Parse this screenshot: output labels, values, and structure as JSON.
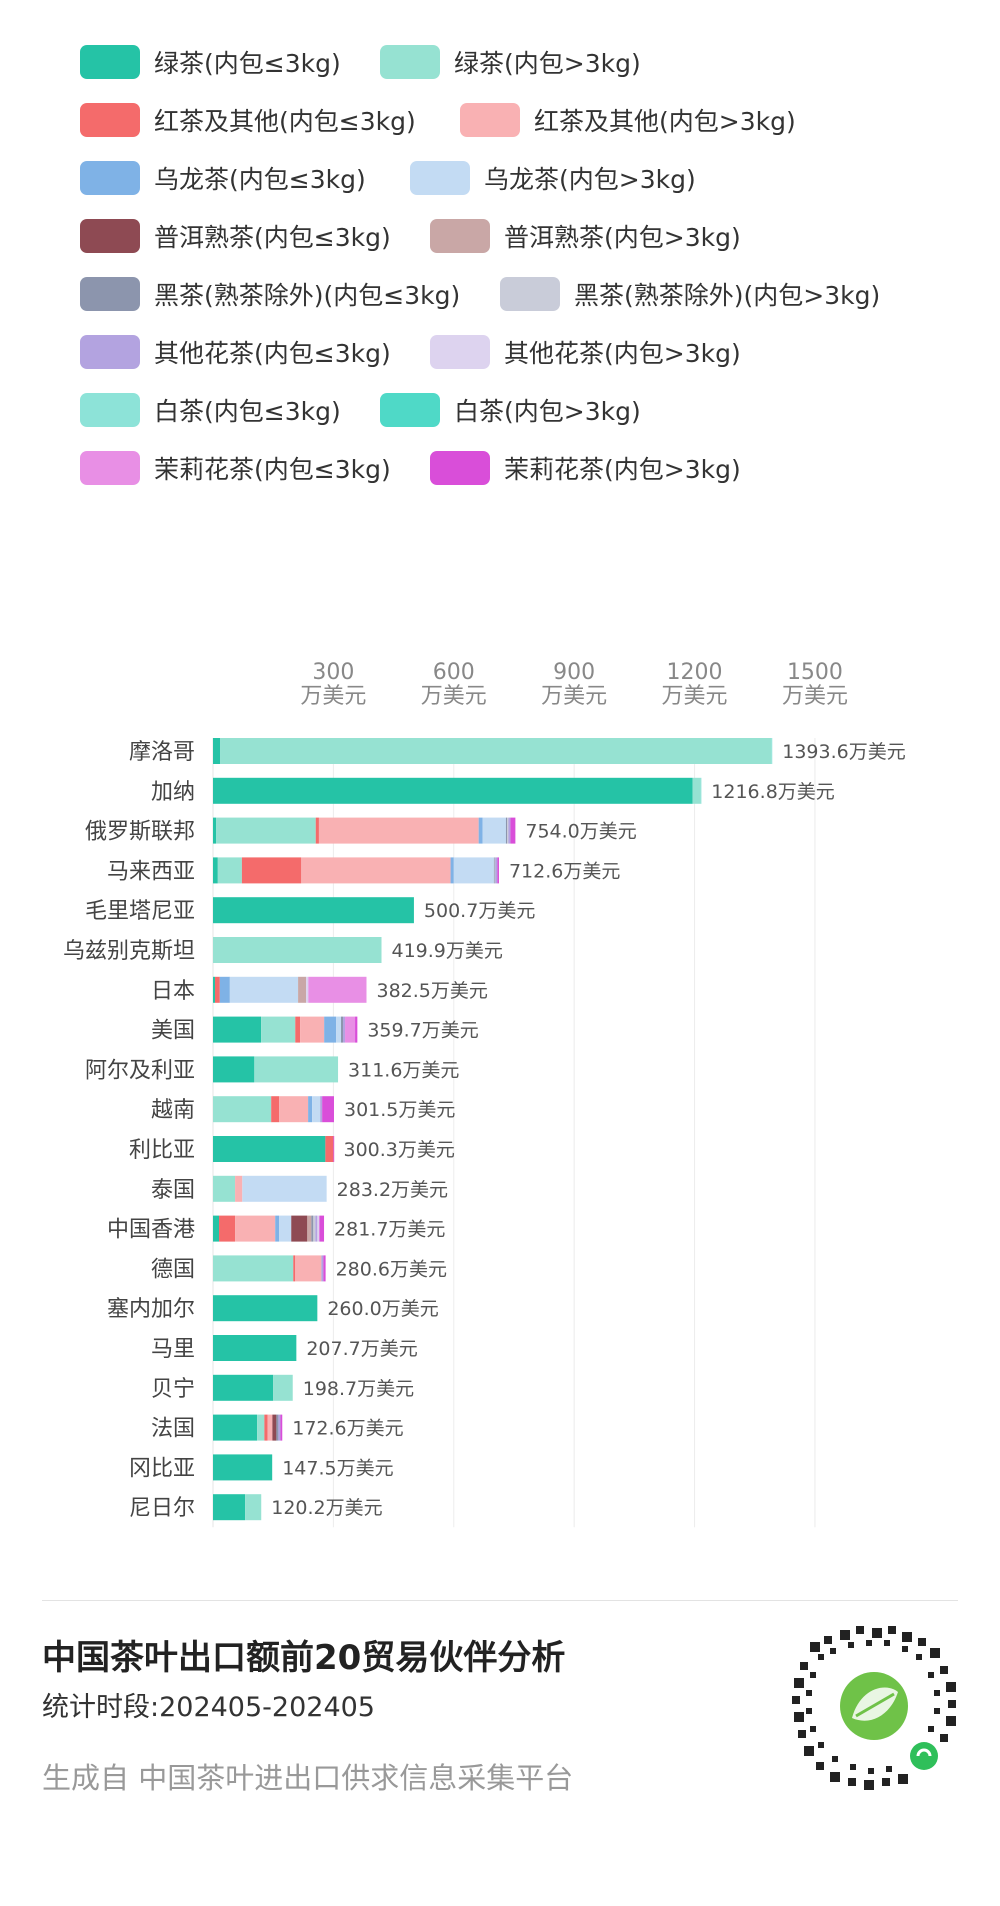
{
  "legend": [
    {
      "label": "绿茶(内包≤3kg)",
      "color": "#25c3a6"
    },
    {
      "label": "绿茶(内包>3kg)",
      "color": "#96e2d2"
    },
    {
      "label": "红茶及其他(内包≤3kg)",
      "color": "#f46b6b"
    },
    {
      "label": "红茶及其他(内包>3kg)",
      "color": "#f9b1b3"
    },
    {
      "label": "乌龙茶(内包≤3kg)",
      "color": "#7fb2e6"
    },
    {
      "label": "乌龙茶(内包>3kg)",
      "color": "#c3dbf3"
    },
    {
      "label": "普洱熟茶(内包≤3kg)",
      "color": "#8e4a53"
    },
    {
      "label": "普洱熟茶(内包>3kg)",
      "color": "#c9a7a6"
    },
    {
      "label": "黑茶(熟茶除外)(内包≤3kg)",
      "color": "#8c95ad"
    },
    {
      "label": "黑茶(熟茶除外)(内包>3kg)",
      "color": "#c9ccd9"
    },
    {
      "label": "其他花茶(内包≤3kg)",
      "color": "#b3a3e0"
    },
    {
      "label": "其他花茶(内包>3kg)",
      "color": "#ddd3ef"
    },
    {
      "label": "白茶(内包≤3kg)",
      "color": "#8de3d8"
    },
    {
      "label": "白茶(内包>3kg)",
      "color": "#4fd9c7"
    },
    {
      "label": "茉莉花茶(内包≤3kg)",
      "color": "#e88fe5"
    },
    {
      "label": "茉莉花茶(内包>3kg)",
      "color": "#d94ed9"
    }
  ],
  "chart_data": {
    "type": "bar",
    "orientation": "horizontal",
    "stacked": true,
    "xlim": [
      0,
      1500
    ],
    "x_ticks": [
      "300",
      "600",
      "900",
      "1200",
      "1500"
    ],
    "x_tick_unit": "万美元",
    "grid": true,
    "legend_position": "top",
    "categories": [
      "摩洛哥",
      "加纳",
      "俄罗斯联邦",
      "马来西亚",
      "毛里塔尼亚",
      "乌兹别克斯坦",
      "日本",
      "美国",
      "阿尔及利亚",
      "越南",
      "利比亚",
      "泰国",
      "中国香港",
      "德国",
      "塞内加尔",
      "马里",
      "贝宁",
      "法国",
      "冈比亚",
      "尼日尔"
    ],
    "total_labels": [
      "1393.6万美元",
      "1216.8万美元",
      "754.0万美元",
      "712.6万美元",
      "500.7万美元",
      "419.9万美元",
      "382.5万美元",
      "359.7万美元",
      "311.6万美元",
      "301.5万美元",
      "300.3万美元",
      "283.2万美元",
      "281.7万美元",
      "280.6万美元",
      "260.0万美元",
      "207.7万美元",
      "198.7万美元",
      "172.6万美元",
      "147.5万美元",
      "120.2万美元"
    ],
    "series": [
      {
        "name": "绿茶(内包≤3kg)",
        "values": [
          18,
          1195,
          8,
          12,
          500.7,
          0,
          5,
          120,
          103,
          0,
          280,
          0,
          15,
          0,
          260,
          207.7,
          150,
          110,
          147.5,
          80
        ]
      },
      {
        "name": "绿茶(内包>3kg)",
        "values": [
          1373,
          20,
          248,
          60,
          0,
          419.9,
          0,
          85,
          208.6,
          145,
          0,
          55,
          0,
          200,
          0,
          0,
          48.7,
          18,
          0,
          40.2
        ]
      },
      {
        "name": "红茶及其他(内包≤3kg)",
        "values": [
          0,
          0,
          8,
          148,
          0,
          0,
          12,
          12,
          0,
          20,
          20,
          0,
          40,
          5,
          0,
          0,
          0,
          8,
          0,
          0
        ]
      },
      {
        "name": "红茶及其他(内包>3kg)",
        "values": [
          0,
          0,
          398,
          372,
          0,
          0,
          0,
          60,
          0,
          72,
          0,
          18,
          100,
          65,
          0,
          0,
          0,
          12,
          0,
          0
        ]
      },
      {
        "name": "乌龙茶(内包≤3kg)",
        "values": [
          0,
          0,
          10,
          8,
          0,
          0,
          25,
          30,
          0,
          10,
          0,
          0,
          10,
          0,
          0,
          0,
          0,
          0,
          0,
          0
        ]
      },
      {
        "name": "乌龙茶(内包>3kg)",
        "values": [
          0,
          0,
          58,
          100,
          0,
          0,
          170,
          12,
          0,
          20,
          0,
          210.2,
          30,
          0,
          0,
          0,
          0,
          0,
          0,
          0
        ]
      },
      {
        "name": "普洱熟茶(内包≤3kg)",
        "values": [
          0,
          0,
          0,
          0,
          0,
          0,
          0,
          0,
          0,
          0,
          0,
          0,
          40,
          0,
          0,
          0,
          0,
          10,
          0,
          0
        ]
      },
      {
        "name": "普洱熟茶(内包>3kg)",
        "values": [
          0,
          0,
          0,
          0,
          0,
          0,
          20,
          0,
          0,
          0,
          0,
          0,
          10,
          0,
          0,
          0,
          0,
          0,
          0,
          0
        ]
      },
      {
        "name": "黑茶(熟茶除外)(内包≤3kg)",
        "values": [
          0,
          0,
          3,
          2,
          0,
          0,
          0,
          5,
          0,
          0,
          0,
          0,
          5,
          0,
          0,
          0,
          0,
          5,
          0,
          0
        ]
      },
      {
        "name": "黑茶(熟茶除外)(内包>3kg)",
        "values": [
          0,
          0,
          3,
          1.6,
          0,
          0,
          0,
          0,
          0,
          0,
          0,
          0,
          5,
          0,
          0,
          0,
          0,
          0,
          0,
          0
        ]
      },
      {
        "name": "其他花茶(内包≤3kg)",
        "values": [
          0,
          0,
          5,
          5,
          0,
          0,
          0,
          5,
          0,
          5,
          0,
          0,
          5,
          5,
          0,
          0,
          0,
          5,
          0,
          0
        ]
      },
      {
        "name": "其他花茶(内包>3kg)",
        "values": [
          0,
          0,
          0,
          0,
          0,
          0,
          5.5,
          0,
          0,
          0,
          0,
          0,
          5,
          0,
          0,
          0,
          0,
          0,
          0,
          0
        ]
      },
      {
        "name": "白茶(内包≤3kg)",
        "values": [
          2.6,
          1.8,
          0,
          0,
          0,
          0,
          0,
          0,
          0,
          0,
          0,
          0,
          0,
          0,
          0,
          0,
          0,
          0,
          0,
          0
        ]
      },
      {
        "name": "白茶(内包>3kg)",
        "values": [
          0,
          0,
          0,
          0,
          0,
          0,
          0,
          0,
          0,
          0,
          0,
          0,
          0,
          0,
          0,
          0,
          0,
          0,
          0,
          0
        ]
      },
      {
        "name": "茉莉花茶(内包≤3kg)",
        "values": [
          0,
          0,
          0,
          0,
          0,
          0,
          145,
          25,
          0,
          0,
          0,
          0,
          0,
          0,
          0,
          0,
          0,
          0,
          0,
          0
        ]
      },
      {
        "name": "茉莉花茶(内包>3kg)",
        "values": [
          0,
          0,
          12.5,
          4,
          0,
          0,
          0,
          5.7,
          0,
          29.5,
          0.3,
          0,
          11.7,
          5.6,
          0,
          0,
          0,
          4.6,
          0,
          0
        ]
      }
    ]
  },
  "footer": {
    "title": "中国茶叶出口额前20贸易伙伴分析",
    "period": "统计时段:202405-202405",
    "source": "生成自 中国茶叶进出口供求信息采集平台"
  }
}
